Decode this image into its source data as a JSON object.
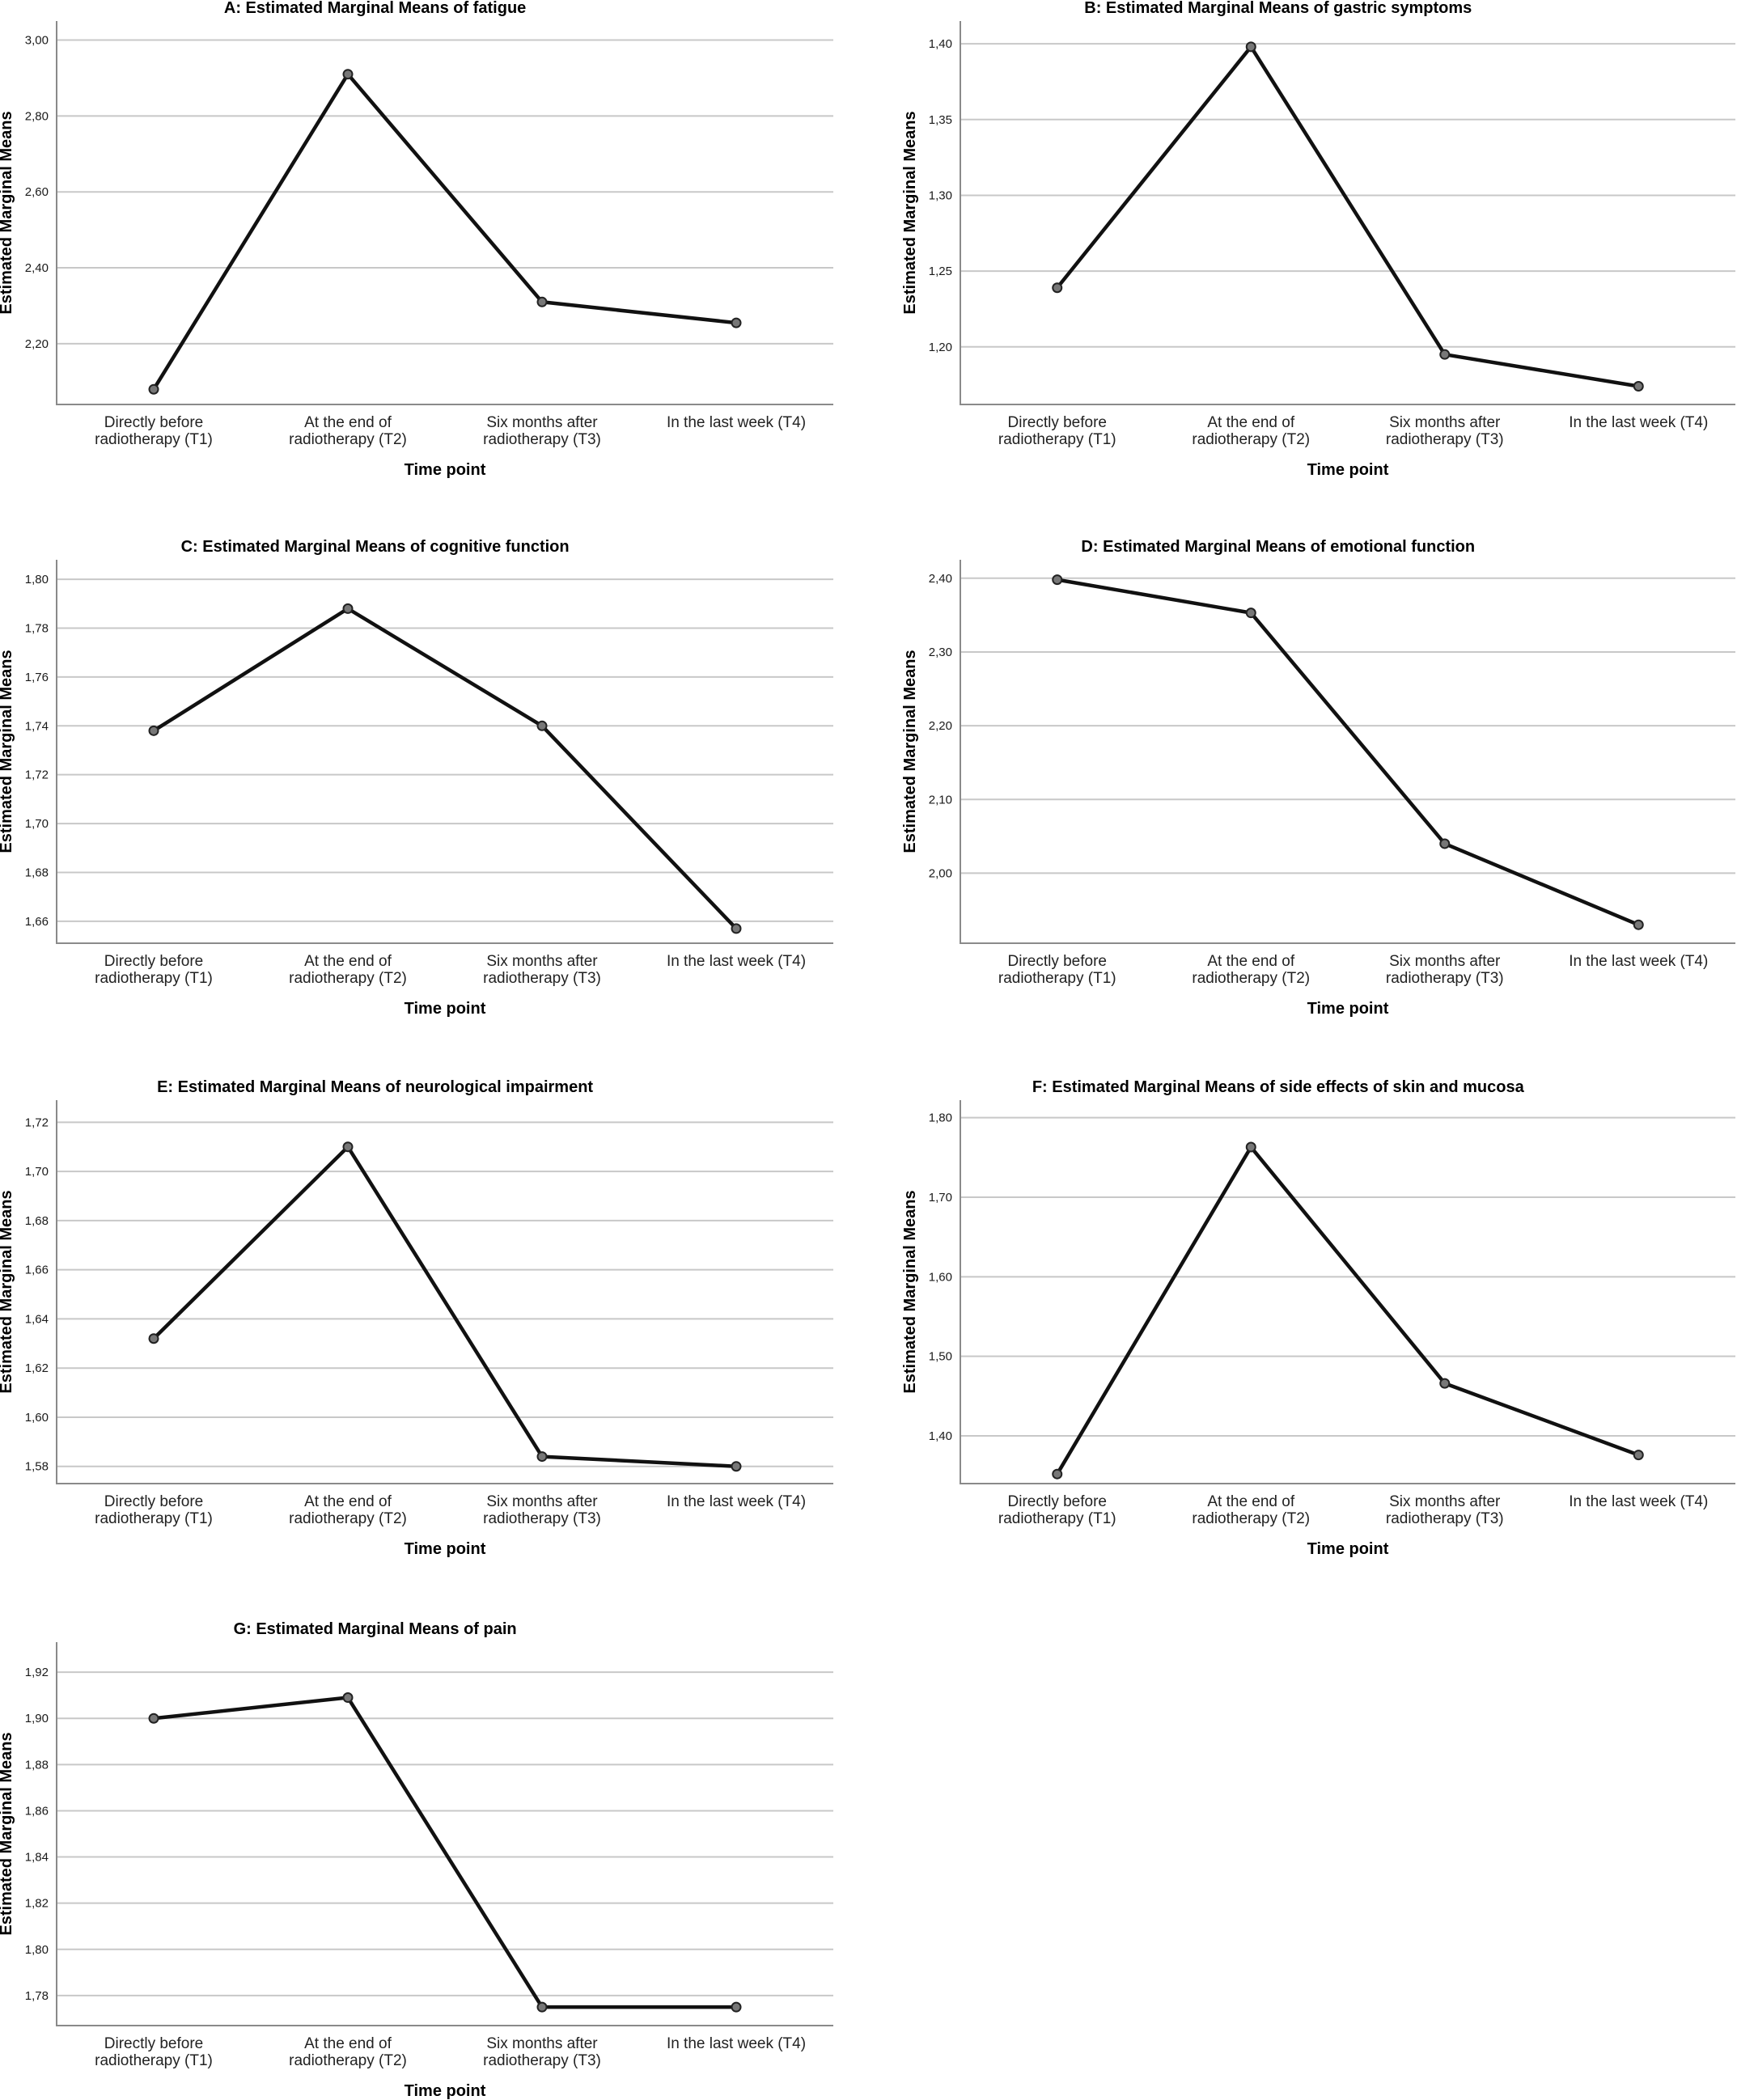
{
  "chart_data": [
    {
      "type": "line",
      "title": "A: Estimated Marginal Means of fatigue",
      "xlabel": "Time point",
      "ylabel": "Estimated Marginal Means",
      "categories": [
        "Directly before radiotherapy (T1)",
        "At the end of radiotherapy (T2)",
        "Six months after radiotherapy (T3)",
        "In the last week (T4)"
      ],
      "values": [
        2.08,
        2.91,
        2.31,
        2.255
      ],
      "ylim": [
        2.04,
        3.05
      ],
      "yticks": [
        2.2,
        2.4,
        2.6,
        2.8,
        3.0
      ],
      "ytick_labels": [
        "2,20",
        "2,40",
        "2,60",
        "2,80",
        "3,00"
      ]
    },
    {
      "type": "line",
      "title": "B: Estimated Marginal Means of gastric symptoms",
      "xlabel": "Time point",
      "ylabel": "Estimated Marginal Means",
      "categories": [
        "Directly before radiotherapy (T1)",
        "At the end of radiotherapy (T2)",
        "Six months after radiotherapy (T3)",
        "In the last week (T4)"
      ],
      "values": [
        1.239,
        1.398,
        1.195,
        1.174
      ],
      "ylim": [
        1.162,
        1.415
      ],
      "yticks": [
        1.2,
        1.25,
        1.3,
        1.35,
        1.4
      ],
      "ytick_labels": [
        "1,20",
        "1,25",
        "1,30",
        "1,35",
        "1,40"
      ]
    },
    {
      "type": "line",
      "title": "C: Estimated Marginal Means of cognitive function",
      "xlabel": "Time point",
      "ylabel": "Estimated Marginal Means",
      "categories": [
        "Directly before radiotherapy (T1)",
        "At the end of radiotherapy (T2)",
        "Six months after radiotherapy (T3)",
        "In the last week (T4)"
      ],
      "values": [
        1.738,
        1.788,
        1.74,
        1.657
      ],
      "ylim": [
        1.651,
        1.808
      ],
      "yticks": [
        1.66,
        1.68,
        1.7,
        1.72,
        1.74,
        1.76,
        1.78,
        1.8
      ],
      "ytick_labels": [
        "1,66",
        "1,68",
        "1,70",
        "1,72",
        "1,74",
        "1,76",
        "1,78",
        "1,80"
      ]
    },
    {
      "type": "line",
      "title": "D: Estimated Marginal Means of emotional function",
      "xlabel": "Time point",
      "ylabel": "Estimated Marginal Means",
      "categories": [
        "Directly before radiotherapy (T1)",
        "At the end of radiotherapy (T2)",
        "Six months after radiotherapy (T3)",
        "In the last week (T4)"
      ],
      "values": [
        2.398,
        2.353,
        2.04,
        1.93
      ],
      "ylim": [
        1.905,
        2.425
      ],
      "yticks": [
        2.0,
        2.1,
        2.2,
        2.3,
        2.4
      ],
      "ytick_labels": [
        "2,00",
        "2,10",
        "2,20",
        "2,30",
        "2,40"
      ]
    },
    {
      "type": "line",
      "title": "E: Estimated Marginal Means of neurological impairment",
      "xlabel": "Time point",
      "ylabel": "Estimated Marginal Means",
      "categories": [
        "Directly before radiotherapy (T1)",
        "At the end of radiotherapy (T2)",
        "Six months after radiotherapy (T3)",
        "In the last week (T4)"
      ],
      "values": [
        1.632,
        1.71,
        1.584,
        1.58
      ],
      "ylim": [
        1.573,
        1.729
      ],
      "yticks": [
        1.58,
        1.6,
        1.62,
        1.64,
        1.66,
        1.68,
        1.7,
        1.72
      ],
      "ytick_labels": [
        "1,58",
        "1,60",
        "1,62",
        "1,64",
        "1,66",
        "1,68",
        "1,70",
        "1,72"
      ]
    },
    {
      "type": "line",
      "title": "F: Estimated Marginal Means of side effects of skin and mucosa",
      "xlabel": "Time point",
      "ylabel": "Estimated Marginal Means",
      "categories": [
        "Directly before radiotherapy (T1)",
        "At the end of radiotherapy (T2)",
        "Six months after radiotherapy (T3)",
        "In the last week (T4)"
      ],
      "values": [
        1.352,
        1.763,
        1.466,
        1.376
      ],
      "ylim": [
        1.34,
        1.822
      ],
      "yticks": [
        1.4,
        1.5,
        1.6,
        1.7,
        1.8
      ],
      "ytick_labels": [
        "1,40",
        "1,50",
        "1,60",
        "1,70",
        "1,80"
      ]
    },
    {
      "type": "line",
      "title": "G: Estimated Marginal Means of pain",
      "xlabel": "Time point",
      "ylabel": "Estimated Marginal Means",
      "categories": [
        "Directly before radiotherapy (T1)",
        "At the end of radiotherapy (T2)",
        "Six months after radiotherapy (T3)",
        "In the last week (T4)"
      ],
      "values": [
        1.9,
        1.909,
        1.775,
        1.775
      ],
      "ylim": [
        1.767,
        1.933
      ],
      "yticks": [
        1.78,
        1.8,
        1.82,
        1.84,
        1.86,
        1.88,
        1.9,
        1.92
      ],
      "ytick_labels": [
        "1,78",
        "1,80",
        "1,82",
        "1,84",
        "1,86",
        "1,88",
        "1,90",
        "1,92"
      ]
    }
  ]
}
